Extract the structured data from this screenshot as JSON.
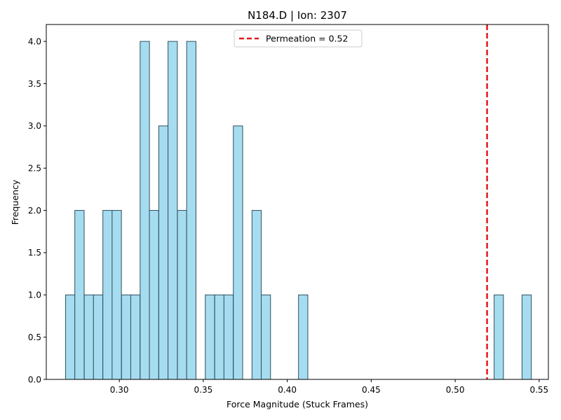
{
  "chart_data": {
    "type": "histogram",
    "title": "N184.D | Ion: 2307",
    "xlabel": "Force Magnitude (Stuck Frames)",
    "ylabel": "Frequency",
    "xlim": [
      0.2565,
      0.5555
    ],
    "ylim": [
      0,
      4.2
    ],
    "xticks": [
      "0.30",
      "0.35",
      "0.40",
      "0.45",
      "0.50",
      "0.55"
    ],
    "yticks": [
      "0.0",
      "0.5",
      "1.0",
      "1.5",
      "2.0",
      "2.5",
      "3.0",
      "3.5",
      "4.0"
    ],
    "bin_width": 0.00554,
    "bins": [
      {
        "start": 0.268,
        "count": 1
      },
      {
        "start": 0.2735,
        "count": 2
      },
      {
        "start": 0.2791,
        "count": 1
      },
      {
        "start": 0.2846,
        "count": 1
      },
      {
        "start": 0.2902,
        "count": 2
      },
      {
        "start": 0.2957,
        "count": 2
      },
      {
        "start": 0.3013,
        "count": 1
      },
      {
        "start": 0.3068,
        "count": 1
      },
      {
        "start": 0.3124,
        "count": 4
      },
      {
        "start": 0.3179,
        "count": 2
      },
      {
        "start": 0.3235,
        "count": 3
      },
      {
        "start": 0.329,
        "count": 4
      },
      {
        "start": 0.3346,
        "count": 2
      },
      {
        "start": 0.3401,
        "count": 4
      },
      {
        "start": 0.3512,
        "count": 1
      },
      {
        "start": 0.3568,
        "count": 1
      },
      {
        "start": 0.3623,
        "count": 1
      },
      {
        "start": 0.3679,
        "count": 3
      },
      {
        "start": 0.379,
        "count": 2
      },
      {
        "start": 0.3845,
        "count": 1
      },
      {
        "start": 0.4067,
        "count": 1
      },
      {
        "start": 0.5232,
        "count": 1
      },
      {
        "start": 0.5398,
        "count": 1
      }
    ],
    "vline": {
      "x": 0.519,
      "label": "Permeation = 0.52",
      "color": "#e31a1c"
    },
    "bar_color": "#a6dcef",
    "bar_edge_color": "#2f4f5f",
    "legend_position": "top-center",
    "grid": false
  }
}
